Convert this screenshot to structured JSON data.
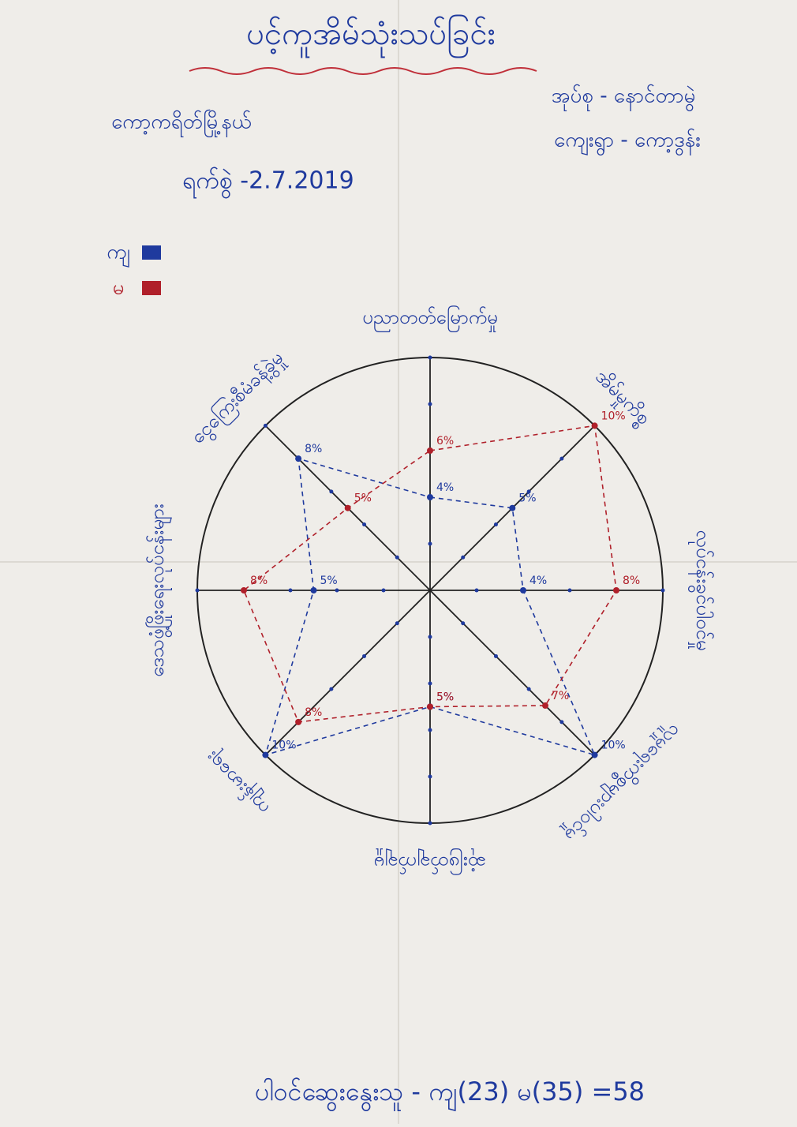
{
  "chart_data": {
    "type": "radar",
    "title": "ပင့်ကူအိမ်သုံးသပ်ခြင်း",
    "group": "အုပ်စု - နောင်တာမွဲ",
    "township": "ကော့ကရိတ်မြို့နယ်",
    "village": "ကျေးရွာ - ကော့ဒွန်း",
    "date": "ရက်စွဲ -2.7.2019",
    "footer": "ပါဝင်ဆွေးနွေးသူ - ကျ(23) မ(35) =58",
    "categories": [
      "ပညာတတ်မြောက်မှု",
      "အိမ်မှုကိစ္စ",
      "လုပ်ငန်းခွင်ပါဝင်မှု",
      "လူမှုရေးကိစ္စများပါဝင်မှု",
      "ဆုံးဖြတ်ချက်ချမှု",
      "ကျန်းမာရေး",
      "ဒေသဖွံ့ဖြိုးရေးလုပ်ငန်းများ",
      "ငွေကြေးစီမံခန့်ခွဲမှု"
    ],
    "rlim": [
      0,
      10
    ],
    "rticks": [
      2,
      4,
      6,
      8,
      10
    ],
    "legend": "top-left",
    "series": [
      {
        "name": "ကျ",
        "color": "#1f3a9e",
        "values": [
          4,
          5,
          4,
          10,
          5,
          10,
          5,
          8
        ],
        "value_labels": [
          "4%",
          "5%",
          "4%",
          "10%",
          "5%",
          "10%",
          "5%",
          "8%"
        ]
      },
      {
        "name": "မ",
        "color": "#b0202a",
        "values": [
          6,
          10,
          8,
          7,
          5,
          8,
          8,
          5
        ],
        "value_labels": [
          "6%",
          "10%",
          "8%",
          "7%",
          "5%",
          "8%",
          "8%",
          "5%"
        ]
      }
    ]
  }
}
